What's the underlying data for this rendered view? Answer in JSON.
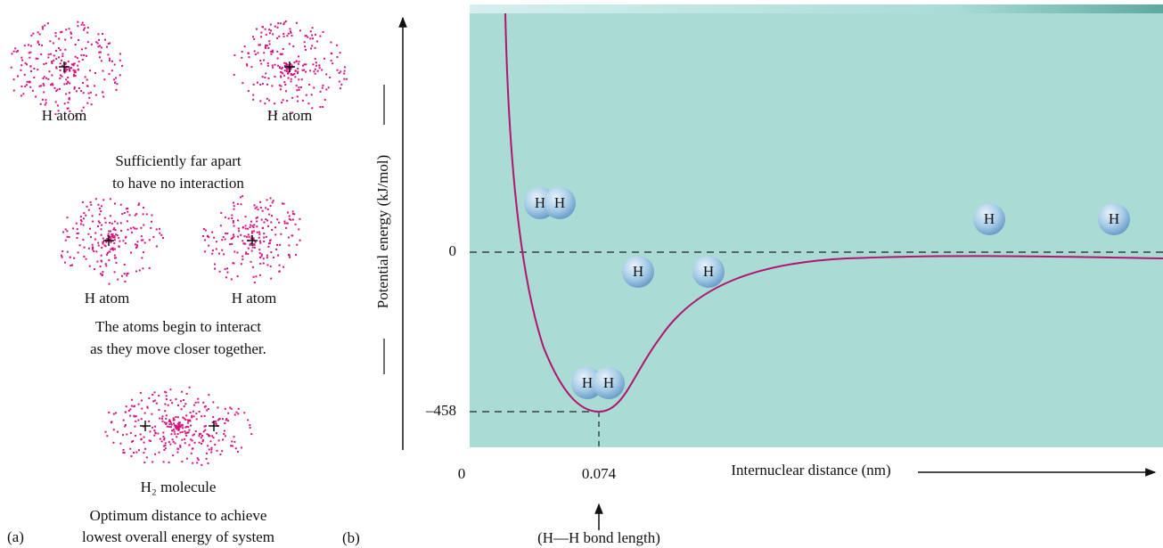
{
  "panel_a": {
    "label": "(a)",
    "states": [
      {
        "atoms": [
          "H atom",
          "H atom"
        ],
        "caption": [
          "Sufficiently far apart",
          "to have no interaction"
        ]
      },
      {
        "atoms": [
          "H atom",
          "H atom"
        ],
        "caption": [
          "The atoms begin to interact",
          "as they move closer together."
        ]
      },
      {
        "atoms": [
          "H₂ molecule"
        ],
        "caption": [
          "Optimum distance to achieve",
          "lowest overall energy of system"
        ]
      }
    ]
  },
  "panel_b": {
    "label": "(b)",
    "y_axis_label": "Potential energy (kJ/mol)",
    "x_axis_label": "Internuclear distance (nm)",
    "y_labels": [
      "0",
      "–458"
    ],
    "x_labels": [
      "0",
      "0.074"
    ],
    "bond_length_label": "(H—H bond length)",
    "atom_symbol": "H"
  }
}
